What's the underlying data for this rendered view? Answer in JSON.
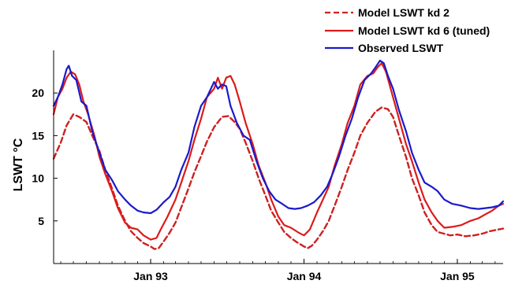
{
  "chart_data": {
    "type": "line",
    "title": "",
    "xlabel": "",
    "ylabel": "LSWT °C",
    "xlim": [
      "1992-05-15",
      "1995-04-20"
    ],
    "ylim": [
      0,
      25
    ],
    "y_ticks": [
      5,
      10,
      15,
      20
    ],
    "x_ticks": [
      {
        "date": "1993-01-01",
        "label": "Jan 93"
      },
      {
        "date": "1994-01-01",
        "label": "Jan 94"
      },
      {
        "date": "1995-01-01",
        "label": "Jan 95"
      }
    ],
    "grid": false,
    "legend_position": "top-right",
    "series": [
      {
        "name": "Model LSWT kd 2",
        "color": "#cc2222",
        "line_style": "dashed",
        "points": [
          [
            "1992-05-15",
            12.3
          ],
          [
            "1992-06-01",
            14.2
          ],
          [
            "1992-06-15",
            16.2
          ],
          [
            "1992-07-01",
            17.5
          ],
          [
            "1992-07-15",
            17.2
          ],
          [
            "1992-08-01",
            16.6
          ],
          [
            "1992-08-15",
            15.0
          ],
          [
            "1992-09-01",
            13.2
          ],
          [
            "1992-09-15",
            11.0
          ],
          [
            "1992-10-01",
            8.8
          ],
          [
            "1992-10-15",
            6.8
          ],
          [
            "1992-11-01",
            5.0
          ],
          [
            "1992-11-15",
            3.8
          ],
          [
            "1992-12-01",
            3.0
          ],
          [
            "1992-12-15",
            2.4
          ],
          [
            "1993-01-01",
            2.0
          ],
          [
            "1993-01-10",
            1.7
          ],
          [
            "1993-01-20",
            1.8
          ],
          [
            "1993-02-01",
            2.6
          ],
          [
            "1993-02-15",
            3.6
          ],
          [
            "1993-03-01",
            4.8
          ],
          [
            "1993-03-15",
            6.6
          ],
          [
            "1993-04-01",
            8.8
          ],
          [
            "1993-04-15",
            10.7
          ],
          [
            "1993-05-01",
            12.6
          ],
          [
            "1993-05-15",
            14.3
          ],
          [
            "1993-06-01",
            16.0
          ],
          [
            "1993-06-20",
            17.2
          ],
          [
            "1993-07-05",
            17.3
          ],
          [
            "1993-07-20",
            16.6
          ],
          [
            "1993-08-01",
            15.8
          ],
          [
            "1993-08-15",
            14.2
          ],
          [
            "1993-09-01",
            12.0
          ],
          [
            "1993-09-15",
            10.0
          ],
          [
            "1993-10-01",
            8.0
          ],
          [
            "1993-10-15",
            6.2
          ],
          [
            "1993-11-01",
            4.8
          ],
          [
            "1993-11-15",
            3.7
          ],
          [
            "1993-12-01",
            3.0
          ],
          [
            "1993-12-15",
            2.5
          ],
          [
            "1994-01-01",
            2.0
          ],
          [
            "1994-01-10",
            1.8
          ],
          [
            "1994-01-20",
            2.1
          ],
          [
            "1994-02-01",
            2.8
          ],
          [
            "1994-02-15",
            3.8
          ],
          [
            "1994-03-01",
            5.0
          ],
          [
            "1994-03-15",
            6.8
          ],
          [
            "1994-04-01",
            9.0
          ],
          [
            "1994-04-15",
            11.0
          ],
          [
            "1994-05-01",
            13.0
          ],
          [
            "1994-05-15",
            15.0
          ],
          [
            "1994-06-01",
            16.5
          ],
          [
            "1994-06-20",
            17.8
          ],
          [
            "1994-07-05",
            18.3
          ],
          [
            "1994-07-20",
            18.1
          ],
          [
            "1994-08-01",
            17.2
          ],
          [
            "1994-08-15",
            15.0
          ],
          [
            "1994-09-01",
            12.5
          ],
          [
            "1994-09-15",
            10.0
          ],
          [
            "1994-10-01",
            8.0
          ],
          [
            "1994-10-15",
            6.0
          ],
          [
            "1994-11-01",
            4.5
          ],
          [
            "1994-11-15",
            3.7
          ],
          [
            "1994-12-01",
            3.5
          ],
          [
            "1994-12-15",
            3.3
          ],
          [
            "1995-01-01",
            3.4
          ],
          [
            "1995-01-20",
            3.2
          ],
          [
            "1995-02-10",
            3.3
          ],
          [
            "1995-03-01",
            3.5
          ],
          [
            "1995-03-20",
            3.8
          ],
          [
            "1995-04-10",
            4.0
          ],
          [
            "1995-04-20",
            4.1
          ]
        ]
      },
      {
        "name": "Model LSWT kd 6 (tuned)",
        "color": "#dd1a1a",
        "line_style": "solid",
        "points": [
          [
            "1992-05-15",
            17.5
          ],
          [
            "1992-05-25",
            19.5
          ],
          [
            "1992-06-05",
            20.5
          ],
          [
            "1992-06-15",
            21.8
          ],
          [
            "1992-06-25",
            22.5
          ],
          [
            "1992-07-05",
            22.2
          ],
          [
            "1992-07-15",
            21.0
          ],
          [
            "1992-07-25",
            19.0
          ],
          [
            "1992-08-05",
            17.5
          ],
          [
            "1992-08-20",
            15.0
          ],
          [
            "1992-09-01",
            12.5
          ],
          [
            "1992-09-15",
            10.5
          ],
          [
            "1992-10-01",
            8.5
          ],
          [
            "1992-10-15",
            6.5
          ],
          [
            "1992-11-01",
            4.8
          ],
          [
            "1992-11-15",
            4.2
          ],
          [
            "1992-12-01",
            4.0
          ],
          [
            "1992-12-15",
            3.3
          ],
          [
            "1993-01-01",
            2.8
          ],
          [
            "1993-01-15",
            3.0
          ],
          [
            "1993-01-25",
            4.0
          ],
          [
            "1993-02-10",
            5.5
          ],
          [
            "1993-03-01",
            7.5
          ],
          [
            "1993-03-15",
            9.5
          ],
          [
            "1993-04-01",
            12.0
          ],
          [
            "1993-04-15",
            14.5
          ],
          [
            "1993-05-01",
            17.0
          ],
          [
            "1993-05-15",
            19.5
          ],
          [
            "1993-06-01",
            20.5
          ],
          [
            "1993-06-10",
            21.8
          ],
          [
            "1993-06-20",
            20.5
          ],
          [
            "1993-06-30",
            21.8
          ],
          [
            "1993-07-10",
            22.0
          ],
          [
            "1993-07-20",
            21.0
          ],
          [
            "1993-08-01",
            19.0
          ],
          [
            "1993-08-15",
            16.5
          ],
          [
            "1993-09-01",
            14.0
          ],
          [
            "1993-09-15",
            11.5
          ],
          [
            "1993-10-01",
            9.5
          ],
          [
            "1993-10-15",
            7.5
          ],
          [
            "1993-11-01",
            5.5
          ],
          [
            "1993-11-15",
            4.5
          ],
          [
            "1993-12-01",
            4.2
          ],
          [
            "1993-12-20",
            3.6
          ],
          [
            "1994-01-01",
            3.3
          ],
          [
            "1994-01-15",
            4.0
          ],
          [
            "1994-02-01",
            6.0
          ],
          [
            "1994-02-15",
            7.5
          ],
          [
            "1994-03-01",
            9.0
          ],
          [
            "1994-03-15",
            11.5
          ],
          [
            "1994-04-01",
            14.0
          ],
          [
            "1994-04-15",
            16.5
          ],
          [
            "1994-05-01",
            18.5
          ],
          [
            "1994-05-15",
            21.0
          ],
          [
            "1994-06-01",
            22.0
          ],
          [
            "1994-06-15",
            22.3
          ],
          [
            "1994-06-25",
            23.0
          ],
          [
            "1994-07-05",
            23.5
          ],
          [
            "1994-07-15",
            22.5
          ],
          [
            "1994-08-01",
            19.5
          ],
          [
            "1994-08-15",
            17.0
          ],
          [
            "1994-09-01",
            14.0
          ],
          [
            "1994-09-15",
            12.0
          ],
          [
            "1994-10-01",
            9.5
          ],
          [
            "1994-10-15",
            7.5
          ],
          [
            "1994-11-01",
            6.0
          ],
          [
            "1994-11-15",
            5.0
          ],
          [
            "1994-12-01",
            4.2
          ],
          [
            "1994-12-20",
            4.3
          ],
          [
            "1995-01-10",
            4.5
          ],
          [
            "1995-02-01",
            5.0
          ],
          [
            "1995-02-20",
            5.3
          ],
          [
            "1995-03-10",
            5.8
          ],
          [
            "1995-03-25",
            6.2
          ],
          [
            "1995-04-10",
            6.8
          ],
          [
            "1995-04-20",
            7.0
          ]
        ]
      },
      {
        "name": "Observed LSWT",
        "color": "#1a1acc",
        "line_style": "solid",
        "points": [
          [
            "1992-05-15",
            18.5
          ],
          [
            "1992-05-25",
            19.5
          ],
          [
            "1992-06-05",
            21.0
          ],
          [
            "1992-06-15",
            22.8
          ],
          [
            "1992-06-20",
            23.2
          ],
          [
            "1992-06-28",
            22.0
          ],
          [
            "1992-07-08",
            21.5
          ],
          [
            "1992-07-20",
            19.0
          ],
          [
            "1992-08-01",
            18.5
          ],
          [
            "1992-08-15",
            15.5
          ],
          [
            "1992-09-01",
            13.0
          ],
          [
            "1992-09-15",
            11.0
          ],
          [
            "1992-10-01",
            9.8
          ],
          [
            "1992-10-15",
            8.5
          ],
          [
            "1992-11-01",
            7.5
          ],
          [
            "1992-11-15",
            6.8
          ],
          [
            "1992-12-01",
            6.2
          ],
          [
            "1992-12-15",
            6.0
          ],
          [
            "1993-01-01",
            5.9
          ],
          [
            "1993-01-15",
            6.3
          ],
          [
            "1993-02-01",
            7.2
          ],
          [
            "1993-02-15",
            7.8
          ],
          [
            "1993-03-01",
            9.0
          ],
          [
            "1993-03-15",
            11.0
          ],
          [
            "1993-04-01",
            13.0
          ],
          [
            "1993-04-15",
            16.0
          ],
          [
            "1993-05-01",
            18.5
          ],
          [
            "1993-05-15",
            19.5
          ],
          [
            "1993-06-01",
            21.3
          ],
          [
            "1993-06-10",
            20.5
          ],
          [
            "1993-06-20",
            21.0
          ],
          [
            "1993-06-30",
            20.8
          ],
          [
            "1993-07-10",
            18.5
          ],
          [
            "1993-07-25",
            16.5
          ],
          [
            "1993-08-10",
            15.0
          ],
          [
            "1993-08-25",
            14.5
          ],
          [
            "1993-09-10",
            12.0
          ],
          [
            "1993-09-25",
            10.0
          ],
          [
            "1993-10-10",
            8.5
          ],
          [
            "1993-10-25",
            7.5
          ],
          [
            "1993-11-10",
            7.0
          ],
          [
            "1993-11-25",
            6.5
          ],
          [
            "1993-12-10",
            6.4
          ],
          [
            "1993-12-25",
            6.5
          ],
          [
            "1994-01-10",
            6.8
          ],
          [
            "1994-01-25",
            7.2
          ],
          [
            "1994-02-10",
            8.0
          ],
          [
            "1994-02-25",
            9.0
          ],
          [
            "1994-03-10",
            10.5
          ],
          [
            "1994-03-25",
            12.5
          ],
          [
            "1994-04-10",
            15.0
          ],
          [
            "1994-04-25",
            17.0
          ],
          [
            "1994-05-10",
            19.5
          ],
          [
            "1994-05-25",
            21.5
          ],
          [
            "1994-06-10",
            22.3
          ],
          [
            "1994-06-20",
            23.0
          ],
          [
            "1994-07-01",
            23.8
          ],
          [
            "1994-07-10",
            23.5
          ],
          [
            "1994-07-20",
            22.0
          ],
          [
            "1994-08-01",
            20.5
          ],
          [
            "1994-08-15",
            18.0
          ],
          [
            "1994-09-01",
            15.5
          ],
          [
            "1994-09-15",
            13.0
          ],
          [
            "1994-10-01",
            11.0
          ],
          [
            "1994-10-15",
            9.5
          ],
          [
            "1994-11-01",
            9.0
          ],
          [
            "1994-11-15",
            8.5
          ],
          [
            "1994-12-01",
            7.5
          ],
          [
            "1994-12-20",
            7.0
          ],
          [
            "1995-01-10",
            6.8
          ],
          [
            "1995-02-01",
            6.5
          ],
          [
            "1995-02-20",
            6.4
          ],
          [
            "1995-03-10",
            6.5
          ],
          [
            "1995-03-25",
            6.6
          ],
          [
            "1995-04-10",
            6.8
          ],
          [
            "1995-04-20",
            7.3
          ]
        ]
      }
    ]
  }
}
